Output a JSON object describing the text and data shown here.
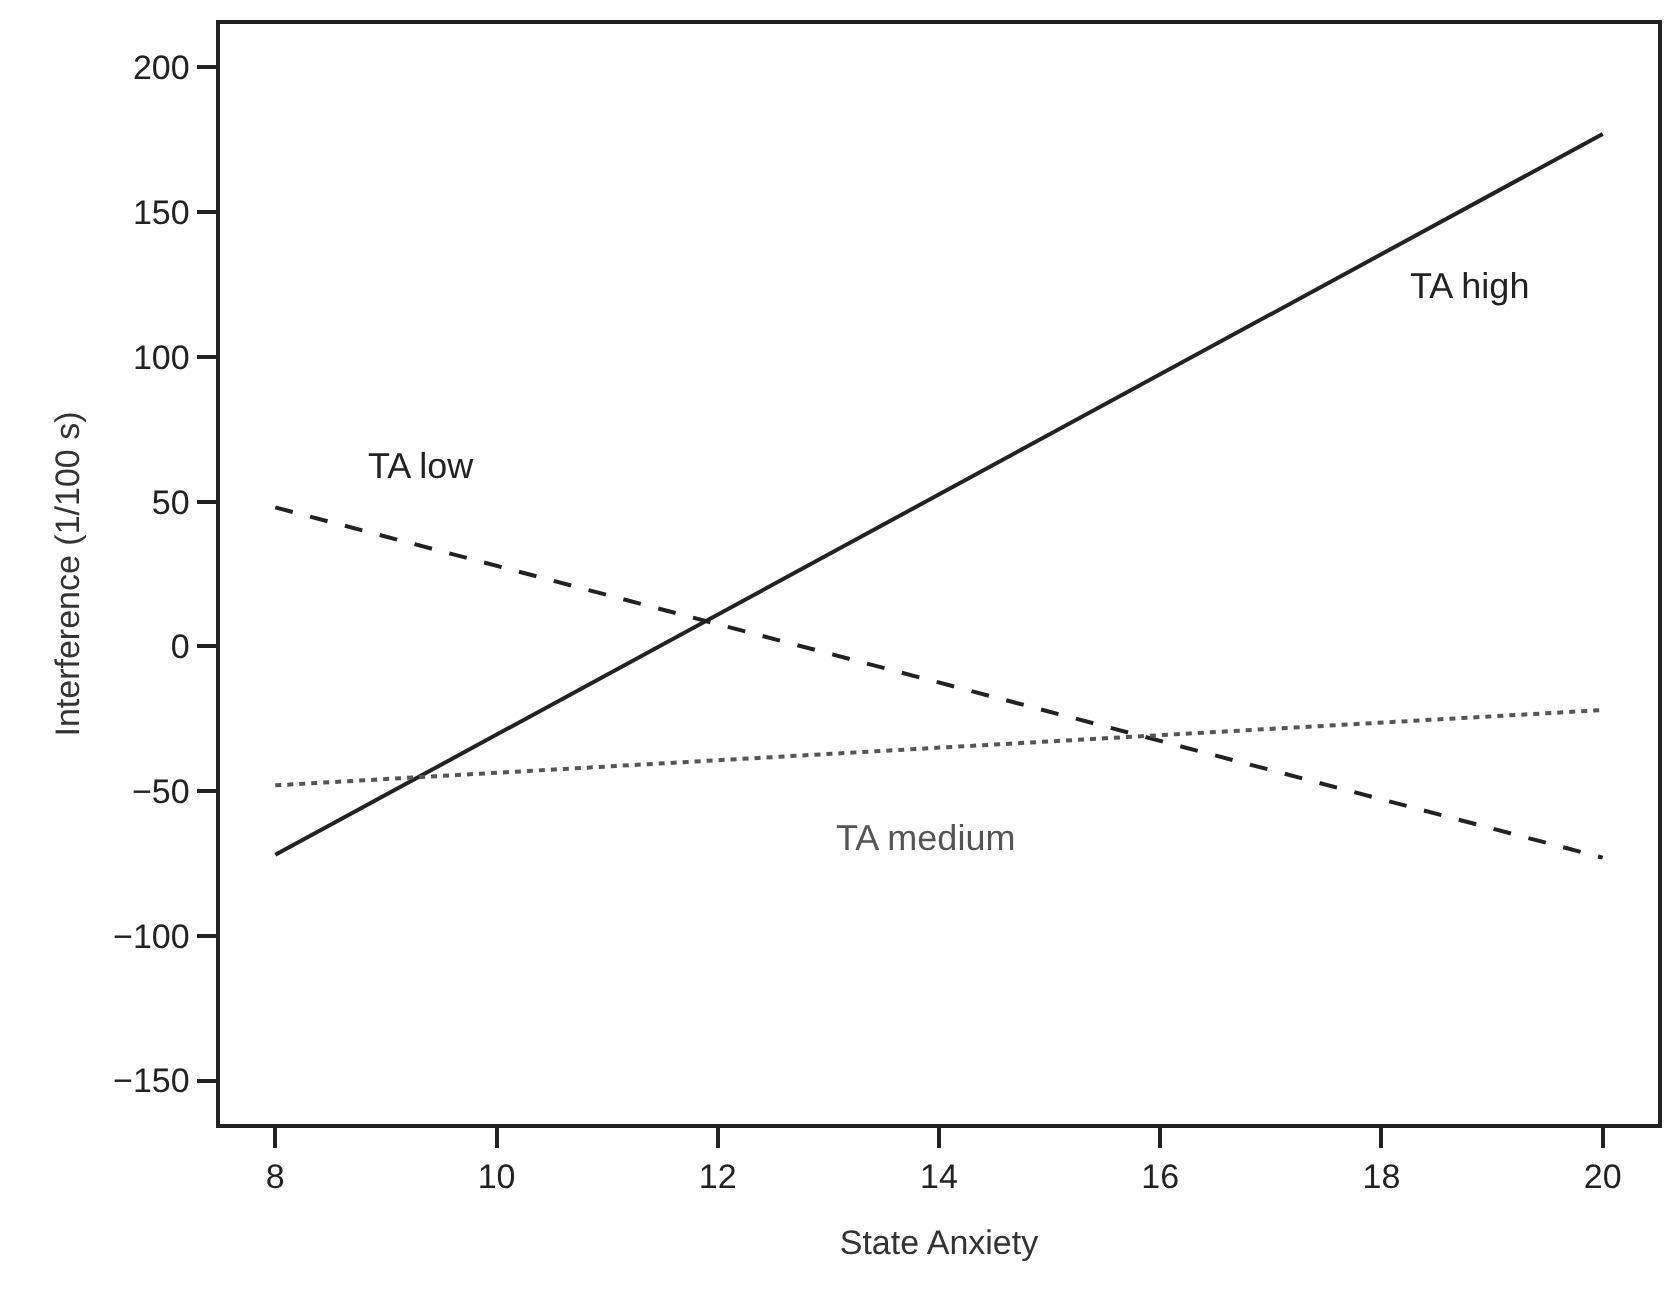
{
  "chart_data": {
    "type": "line",
    "xlabel": "State Anxiety",
    "ylabel": "Interference (1/100 s)",
    "x": [
      8,
      20
    ],
    "series": [
      {
        "name": "TA high",
        "color": "#222222",
        "values": [
          -72,
          177
        ],
        "line_style": "solid"
      },
      {
        "name": "TA low",
        "color": "#222222",
        "values": [
          48,
          -73
        ],
        "line_style": "dashed"
      },
      {
        "name": "TA medium",
        "color": "#555555",
        "values": [
          -48,
          -22
        ],
        "line_style": "dotted"
      }
    ],
    "xlim": [
      7.5,
      20.5
    ],
    "ylim": [
      -165,
      215
    ],
    "xticks": [
      8,
      10,
      12,
      14,
      16,
      18,
      20
    ],
    "yticks": [
      {
        "value": -150,
        "label": "−150"
      },
      {
        "value": -100,
        "label": "−100"
      },
      {
        "value": -50,
        "label": "−50"
      },
      0,
      50,
      100,
      150,
      200
    ],
    "legend": false,
    "marker": "none"
  }
}
